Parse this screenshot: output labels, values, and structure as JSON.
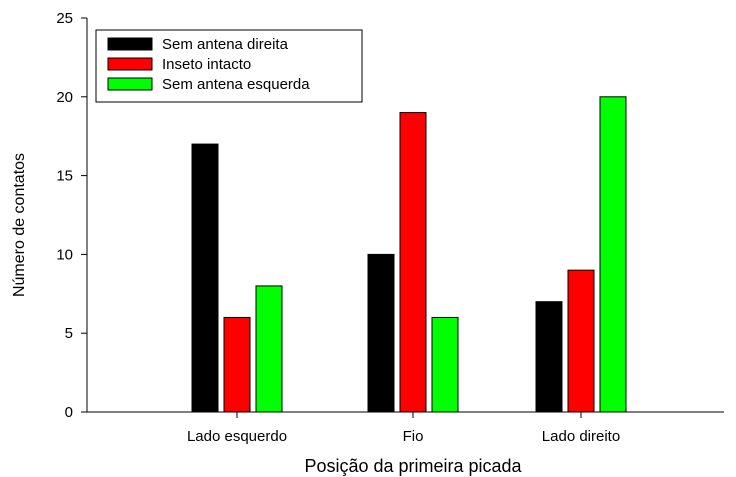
{
  "chart_data": {
    "type": "bar",
    "categories": [
      "Lado esquerdo",
      "Fio",
      "Lado direito"
    ],
    "series": [
      {
        "name": "Sem antena direita",
        "color": "#000000",
        "values": [
          17,
          10,
          7
        ]
      },
      {
        "name": "Inseto intacto",
        "color": "#ff0000",
        "values": [
          6,
          19,
          9
        ]
      },
      {
        "name": "Sem antena esquerda",
        "color": "#00ff00",
        "values": [
          8,
          6,
          20
        ]
      }
    ],
    "title": "",
    "xlabel": "Posição da primeira picada",
    "ylabel": "Número de contatos",
    "ylim": [
      0,
      25
    ],
    "yticks": [
      0,
      5,
      10,
      15,
      20,
      25
    ],
    "grid": false,
    "legend_position": "top-left"
  }
}
